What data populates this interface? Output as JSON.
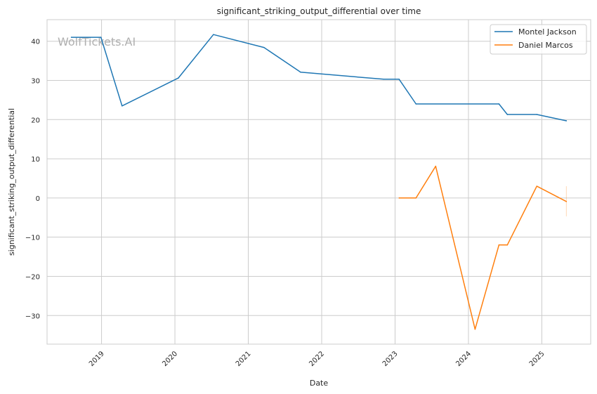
{
  "chart_data": {
    "type": "line",
    "title": "significant_striking_output_differential over time",
    "xlabel": "Date",
    "ylabel": "significant_striking_output_differential",
    "watermark": "WolfTickets.AI",
    "xlim": [
      "2018-04-05",
      "2025-09-01"
    ],
    "ylim": [
      -37.3,
      45.5
    ],
    "x_ticks": [
      "2019",
      "2020",
      "2021",
      "2022",
      "2023",
      "2024",
      "2025"
    ],
    "y_ticks": [
      -30,
      -20,
      -10,
      0,
      10,
      20,
      30,
      40
    ],
    "y_tick_labels": [
      "−30",
      "−20",
      "−10",
      "0",
      "10",
      "20",
      "30",
      "40"
    ],
    "grid": true,
    "legend": "top-right",
    "series": [
      {
        "name": "Montel Jackson",
        "color": "#1f77b4",
        "x": [
          "2018-08-04",
          "2018-12-29",
          "2019-04-13",
          "2020-01-18",
          "2020-07-11",
          "2021-03-20",
          "2021-09-18",
          "2022-11-05",
          "2023-01-21",
          "2023-04-15",
          "2024-06-01",
          "2024-07-13",
          "2024-12-07",
          "2025-05-03"
        ],
        "y": [
          41.0,
          41.0,
          23.5,
          30.6,
          41.7,
          38.4,
          32.1,
          30.3,
          30.3,
          24.0,
          24.0,
          21.3,
          21.3,
          19.7
        ]
      },
      {
        "name": "Daniel Marcos",
        "color": "#ff7f0e",
        "x": [
          "2023-01-21",
          "2023-04-15",
          "2023-07-22",
          "2024-02-03",
          "2024-06-01",
          "2024-07-13",
          "2024-12-07",
          "2025-05-03"
        ],
        "y": [
          0.0,
          0.0,
          8.1,
          -33.5,
          -12.0,
          -12.0,
          3.0,
          -0.9
        ],
        "last_point_range": [
          -4.7,
          3.0
        ]
      }
    ]
  }
}
